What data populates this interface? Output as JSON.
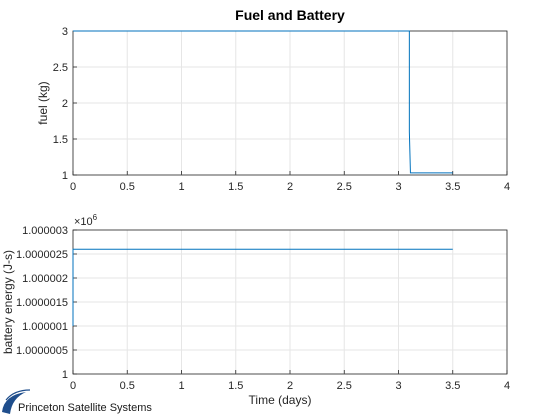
{
  "chart_data": [
    {
      "type": "line",
      "title": "Fuel and Battery",
      "xlabel": "",
      "ylabel": "fuel (kg)",
      "xlim": [
        0,
        4
      ],
      "ylim": [
        1,
        3
      ],
      "xticks": [
        "0",
        "0.5",
        "1",
        "1.5",
        "2",
        "2.5",
        "3",
        "3.5",
        "4"
      ],
      "yticks": [
        "1",
        "1.5",
        "2",
        "2.5",
        "3"
      ],
      "grid": true,
      "color": "#0072BD",
      "series": [
        {
          "x": [
            0,
            3.1,
            3.1,
            3.1,
            3.11,
            3.5
          ],
          "y": [
            3,
            3,
            2.7,
            1.6,
            1.03,
            1.03
          ]
        }
      ]
    },
    {
      "type": "line",
      "title": "",
      "xlabel": "Time (days)",
      "ylabel": "battery energy (J-s)",
      "exponent": "×10",
      "exponent_power": "6",
      "xlim": [
        0,
        4
      ],
      "ylim": [
        1.0,
        1.000003
      ],
      "xticks": [
        "0",
        "0.5",
        "1",
        "1.5",
        "2",
        "2.5",
        "3",
        "3.5",
        "4"
      ],
      "yticks": [
        "1",
        "1.0000005",
        "1.000001",
        "1.0000015",
        "1.000002",
        "1.0000025",
        "1.000003"
      ],
      "grid": true,
      "color": "#0072BD",
      "series": [
        {
          "x": [
            0,
            0,
            0.01,
            3.5
          ],
          "y": [
            1.000001,
            1.0000026,
            1.0000026,
            1.0000026
          ]
        }
      ]
    }
  ],
  "logo": {
    "text": "Princeton Satellite Systems"
  }
}
